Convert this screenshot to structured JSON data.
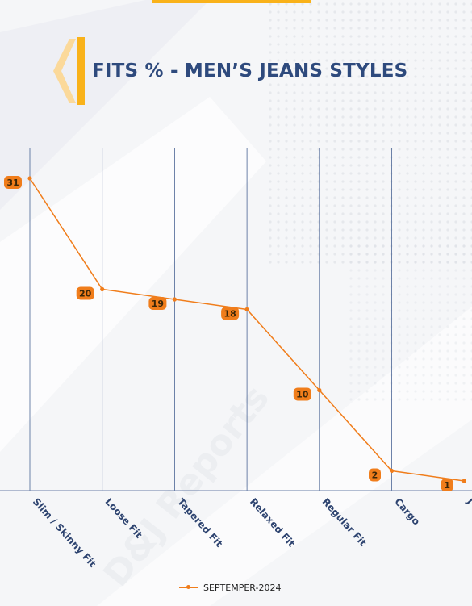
{
  "title": "FITS % - MEN’S JEANS STYLES",
  "watermark": "D&J Reports",
  "colors": {
    "accent": "#f9b21a",
    "title": "#2e4a7d",
    "series": "#f07d1b",
    "grid": "#4a6494"
  },
  "chart_data": {
    "type": "line",
    "title": "FITS % - MEN’S JEANS STYLES",
    "categories": [
      "Slim / Skinny Fit",
      "Loose Fit",
      "Tapered Fit",
      "Relaxed Fit",
      "Regular Fit",
      "Cargo",
      "J"
    ],
    "series": [
      {
        "name": "SEPTEMPER-2024",
        "values": [
          31,
          20,
          19,
          18,
          10,
          2,
          1
        ]
      }
    ],
    "ylim": [
      0,
      35
    ],
    "grid": "vertical",
    "legend": "bottom"
  }
}
